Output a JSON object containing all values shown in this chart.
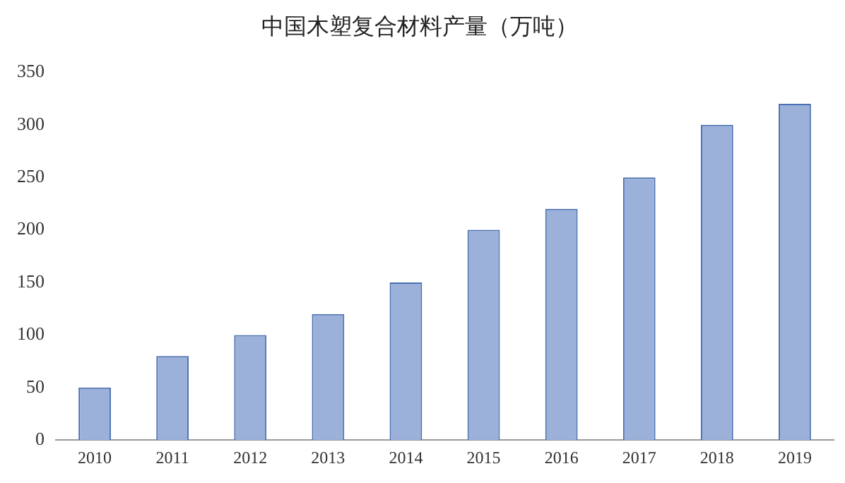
{
  "chart_data": {
    "type": "bar",
    "title": "中国木塑复合材料产量（万吨）",
    "categories": [
      "2010",
      "2011",
      "2012",
      "2013",
      "2014",
      "2015",
      "2016",
      "2017",
      "2018",
      "2019"
    ],
    "values": [
      50,
      80,
      100,
      120,
      150,
      200,
      220,
      250,
      300,
      320
    ],
    "color": "#9bb1da",
    "ylim": [
      0,
      350
    ],
    "yticks": [
      0,
      50,
      100,
      150,
      200,
      250,
      300,
      350
    ],
    "grid": false,
    "legend": false
  }
}
